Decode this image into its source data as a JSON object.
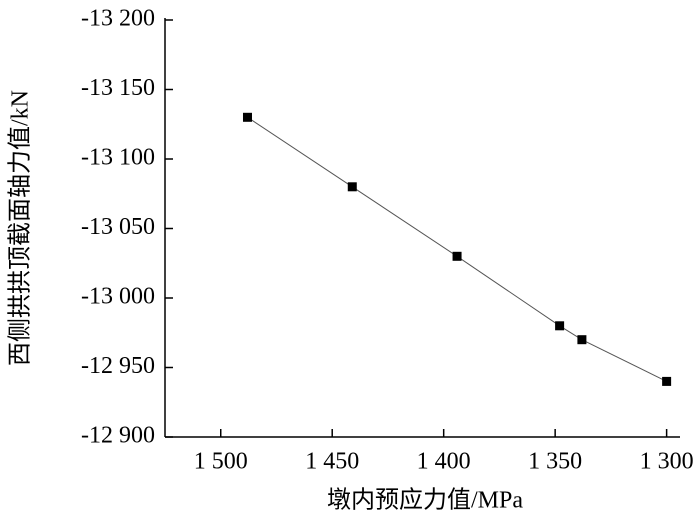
{
  "chart_data": {
    "type": "line",
    "xlabel": "墩内预应力值/MPa",
    "ylabel": "西侧拱拱顶截面轴力值/kN",
    "x": [
      1488,
      1441,
      1394,
      1348,
      1338,
      1300
    ],
    "values": [
      -13130,
      -13080,
      -13030,
      -12980,
      -12970,
      -12940
    ],
    "color": "#000000",
    "line_color": "#555555",
    "marker": "square",
    "xlim": [
      1525,
      1294
    ],
    "xticks": [
      {
        "value": 1500,
        "label": "1 500"
      },
      {
        "value": 1450,
        "label": "1 450"
      },
      {
        "value": 1400,
        "label": "1 400"
      },
      {
        "value": 1350,
        "label": "1 350"
      },
      {
        "value": 1300,
        "label": "1 300"
      }
    ],
    "ylim": [
      -12900,
      -13200
    ],
    "yticks": [
      {
        "value": -13200,
        "label": "-13 200"
      },
      {
        "value": -13150,
        "label": "-13 150"
      },
      {
        "value": -13100,
        "label": "-13 100"
      },
      {
        "value": -13050,
        "label": "-13 050"
      },
      {
        "value": -13000,
        "label": "-13 000"
      },
      {
        "value": -12950,
        "label": "-12 950"
      },
      {
        "value": -12900,
        "label": "-12 900"
      }
    ],
    "grid": false
  }
}
